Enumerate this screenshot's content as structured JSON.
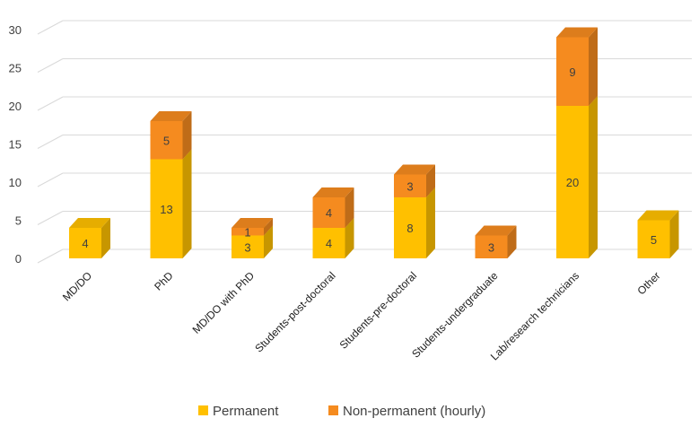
{
  "chart_data": {
    "type": "bar",
    "stacked": true,
    "style": "3d",
    "categories": [
      "MD/DO",
      "PhD",
      "MD/DO with PhD",
      "Students-post-doctoral",
      "Students-pre-doctoral",
      "Students-undergraduate",
      "Lab/research technicians",
      "Other"
    ],
    "series": [
      {
        "name": "Permanent",
        "values": [
          4,
          13,
          3,
          4,
          8,
          0,
          20,
          5
        ],
        "color": "#FFC000"
      },
      {
        "name": "Non-permanent (hourly)",
        "values": [
          0,
          5,
          1,
          4,
          3,
          3,
          9,
          0
        ],
        "color": "#F58B1F"
      }
    ],
    "ylim": [
      0,
      30
    ],
    "yticks": [
      0,
      5,
      10,
      15,
      20,
      25,
      30
    ],
    "grid": true,
    "legend": "bottom",
    "title": "",
    "xlabel": "",
    "ylabel": ""
  }
}
